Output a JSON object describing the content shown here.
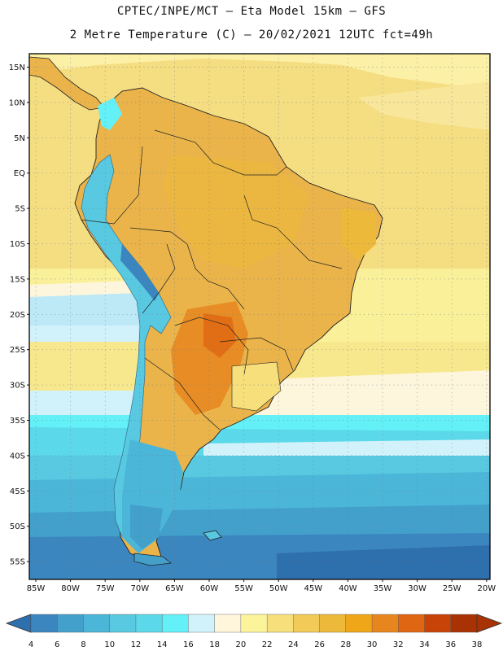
{
  "header": {
    "line1": "CPTEC/INPE/MCT –  Eta Model 15km – GFS",
    "line2": "2 Metre Temperature (C) – 20/02/2021 12UTC fct=49h"
  },
  "map": {
    "lat_labels": [
      "15N",
      "10N",
      "5N",
      "EQ",
      "5S",
      "10S",
      "15S",
      "20S",
      "25S",
      "30S",
      "35S",
      "40S",
      "45S",
      "50S",
      "55S"
    ],
    "lon_labels": [
      "85W",
      "80W",
      "75W",
      "70W",
      "65W",
      "60W",
      "55W",
      "50W",
      "45W",
      "40W",
      "35W",
      "30W",
      "25W",
      "20W"
    ],
    "ocean_north_color": "#f3d77a",
    "land_color": "#eab44a"
  },
  "colorbar": {
    "labels": [
      "4",
      "6",
      "8",
      "10",
      "12",
      "14",
      "16",
      "18",
      "20",
      "22",
      "24",
      "26",
      "28",
      "30",
      "32",
      "34",
      "36",
      "38"
    ],
    "colors": [
      "#2e6fad",
      "#3b86bf",
      "#43a0cb",
      "#4cb6d8",
      "#58c9e0",
      "#5bd9ea",
      "#63f1f7",
      "#d2f2fb",
      "#fff6dc",
      "#fcf49a",
      "#f7df7c",
      "#f1ca57",
      "#ecb93a",
      "#f0a619",
      "#e7861f",
      "#df6612",
      "#c84307",
      "#a83204"
    ]
  }
}
